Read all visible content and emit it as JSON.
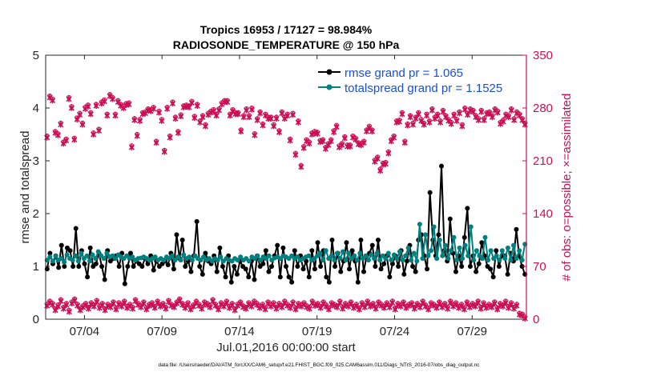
{
  "chart_data": {
    "type": "line",
    "title_line1": "Tropics 16953 / 17127 = 98.984%",
    "title_line2": "RADIOSONDE_TEMPERATURE @ 150 hPa",
    "ylabel_left": "rmse and totalspread",
    "ylabel_right": "# of obs: o=possible; ×=assimilated",
    "xlabel": "Jul.01,2016 00:00:00 start",
    "footer": "data file: /Users/raeder/DAI/ATM_forcXX/CAM6_setup/f.e21.FHIST_BGC.f09_025.CAM6assim.011/Diags_NTrS_2016-07/obs_diag_output.nc",
    "x_range": [
      1,
      32
    ],
    "ylim_left": [
      0,
      5
    ],
    "ylim_right": [
      0,
      350
    ],
    "xticks": [
      {
        "v": 3.5,
        "label": "07/04"
      },
      {
        "v": 8.5,
        "label": "07/09"
      },
      {
        "v": 13.5,
        "label": "07/14"
      },
      {
        "v": 18.5,
        "label": "07/19"
      },
      {
        "v": 23.5,
        "label": "07/24"
      },
      {
        "v": 28.5,
        "label": "07/29"
      }
    ],
    "yticks_left": [
      {
        "v": 0,
        "label": "0"
      },
      {
        "v": 1,
        "label": "1"
      },
      {
        "v": 2,
        "label": "2"
      },
      {
        "v": 3,
        "label": "3"
      },
      {
        "v": 4,
        "label": "4"
      },
      {
        "v": 5,
        "label": "5"
      }
    ],
    "yticks_right": [
      {
        "v": 0,
        "label": "0"
      },
      {
        "v": 70,
        "label": "70"
      },
      {
        "v": 140,
        "label": "140"
      },
      {
        "v": 210,
        "label": "210"
      },
      {
        "v": 280,
        "label": "280"
      },
      {
        "v": 350,
        "label": "350"
      }
    ],
    "colors": {
      "rmse": "#000000",
      "spread": "#00807f",
      "obs": "#cc0e55",
      "legend_text": "#1a4fd6",
      "axis": "#262626"
    },
    "series": [
      {
        "name": "rmse grand pr = 1.065",
        "axis": "left",
        "values": [
          0.95,
          1.25,
          1.05,
          1.2,
          0.98,
          1.4,
          1.0,
          1.35,
          1.3,
          1.0,
          1.72,
          1.0,
          1.3,
          1.05,
          0.8,
          1.35,
          1.0,
          1.05,
          1.25,
          1.0,
          0.75,
          1.3,
          1.1,
          1.15,
          1.2,
          1.0,
          1.25,
          0.67,
          1.0,
          1.25,
          1.0,
          1.1,
          1.05,
          1.0,
          1.15,
          1.05,
          1.2,
          0.93,
          1.1,
          1.0,
          1.05,
          1.1,
          1.03,
          1.25,
          0.95,
          1.6,
          1.15,
          1.5,
          1.0,
          1.1,
          0.9,
          1.2,
          1.85,
          1.0,
          0.85,
          1.25,
          1.1,
          1.05,
          1.2,
          0.9,
          1.35,
          1.0,
          0.8,
          1.2,
          0.7,
          1.0,
          0.85,
          1.1,
          1.0,
          0.95,
          0.8,
          1.1,
          0.75,
          1.2,
          1.0,
          1.05,
          1.3,
          0.9,
          1.0,
          1.2,
          1.4,
          0.8,
          1.35,
          1.0,
          0.8,
          0.7,
          1.3,
          1.0,
          1.2,
          0.95,
          1.1,
          0.8,
          1.3,
          0.95,
          1.45,
          1.0,
          1.3,
          0.8,
          0.7,
          1.5,
          1.0,
          1.25,
          0.9,
          1.1,
          1.45,
          0.95,
          1.3,
          1.1,
          0.7,
          1.5,
          0.9,
          1.2,
          1.25,
          1.4,
          1.0,
          1.5,
          0.95,
          1.05,
          1.2,
          0.8,
          1.05,
          1.2,
          1.0,
          1.3,
          0.85,
          1.1,
          1.4,
          1.0,
          0.9,
          1.5,
          1.6,
          1.2,
          0.95,
          2.4,
          1.5,
          1.2,
          1.6,
          2.9,
          1.3,
          1.1,
          1.9,
          1.25,
          0.9,
          1.2,
          1.0,
          1.55,
          2.1,
          1.0,
          1.2,
          0.9,
          1.05,
          1.45,
          1.2,
          1.0,
          0.95,
          0.8,
          1.3,
          1.0,
          1.2,
          1.2,
          0.85,
          1.25,
          1.1,
          1.7,
          1.2,
          1.0,
          0.85
        ]
      },
      {
        "name": "totalspread grand pr = 1.1525",
        "axis": "left",
        "values": [
          1.12,
          1.18,
          1.1,
          1.2,
          1.12,
          1.15,
          1.08,
          1.22,
          1.15,
          1.12,
          1.2,
          1.1,
          1.25,
          1.15,
          1.2,
          1.1,
          1.22,
          1.15,
          1.28,
          1.2,
          1.15,
          1.25,
          1.18,
          1.2,
          1.15,
          1.22,
          1.18,
          1.15,
          1.2,
          1.15,
          1.18,
          1.12,
          1.15,
          1.16,
          1.18,
          1.15,
          1.12,
          1.15,
          1.18,
          1.12,
          1.15,
          1.12,
          1.18,
          1.15,
          1.2,
          1.12,
          1.18,
          1.12,
          1.22,
          1.15,
          1.18,
          1.12,
          1.2,
          1.15,
          1.12,
          1.18,
          1.12,
          1.15,
          1.1,
          1.15,
          1.12,
          1.18,
          1.1,
          1.15,
          1.12,
          1.1,
          1.15,
          1.12,
          1.18,
          1.12,
          1.15,
          1.1,
          1.18,
          1.15,
          1.2,
          1.12,
          1.18,
          1.15,
          1.2,
          1.12,
          1.16,
          1.18,
          1.15,
          1.2,
          1.18,
          1.15,
          1.2,
          1.15,
          1.18,
          1.12,
          1.15,
          1.18,
          1.2,
          1.12,
          1.15,
          1.2,
          1.25,
          1.12,
          1.3,
          1.15,
          1.2,
          1.12,
          1.25,
          1.15,
          1.28,
          1.12,
          1.25,
          1.15,
          1.2,
          1.12,
          1.25,
          1.15,
          1.2,
          1.12,
          1.22,
          1.15,
          1.25,
          1.12,
          1.2,
          1.15,
          1.25,
          1.12,
          1.22,
          1.15,
          1.28,
          1.12,
          1.2,
          1.35,
          1.12,
          1.25,
          1.1,
          1.8,
          1.15,
          1.6,
          1.2,
          1.3,
          1.75,
          1.15,
          1.5,
          1.2,
          1.4,
          1.15,
          1.3,
          1.55,
          1.12,
          1.35,
          1.15,
          1.4,
          1.2,
          1.75,
          1.12,
          1.3,
          1.2,
          1.15,
          1.55,
          1.12,
          1.3,
          1.15,
          1.2,
          1.12,
          1.3,
          1.15,
          1.35,
          1.12,
          1.4,
          1.15,
          1.3,
          1.12,
          1.42
        ]
      },
      {
        "name": "obs possible",
        "axis": "right",
        "values": [
          241,
          294,
          290,
          247,
          244,
          258,
          233,
          237,
          292,
          280,
          238,
          265,
          271,
          258,
          279,
          282,
          272,
          245,
          283,
          250,
          286,
          289,
          270,
          296,
          292,
          270,
          288,
          283,
          280,
          284,
          285,
          228,
          264,
          243,
          263,
          272,
          273,
          277,
          276,
          279,
          234,
          274,
          263,
          222,
          279,
          241,
          286,
          266,
          247,
          269,
          281,
          282,
          281,
          287,
          267,
          283,
          261,
          268,
          256,
          271,
          274,
          276,
          270,
          277,
          285,
          288,
          288,
          270,
          276,
          272,
          272,
          249,
          268,
          277,
          268,
          278,
          244,
          264,
          273,
          257,
          270,
          266,
          266,
          256,
          266,
          248,
          273,
          266,
          270,
          237,
          271,
          218,
          261,
          202,
          227,
          236,
          233,
          245,
          247,
          246,
          235,
          236,
          226,
          231,
          236,
          248,
          255,
          228,
          231,
          240,
          229,
          229,
          241,
          238,
          232,
          231,
          234,
          249,
          254,
          249,
          209,
          213,
          197,
          205,
          206,
          220,
          236,
          241,
          261,
          262,
          272,
          234,
          257,
          268,
          258,
          266,
          272,
          263,
          258,
          270,
          261,
          277,
          266,
          270,
          261,
          275,
          268,
          263,
          259,
          270,
          263,
          273,
          256,
          278,
          271,
          277,
          275,
          268,
          264,
          275,
          264,
          272,
          273,
          268,
          277,
          274,
          259,
          262,
          270,
          268,
          277,
          264,
          273,
          270,
          264,
          258
        ]
      },
      {
        "name": "obs assimilated",
        "axis": "right",
        "values": [
          241,
          294,
          290,
          247,
          244,
          258,
          233,
          237,
          292,
          280,
          238,
          265,
          271,
          258,
          279,
          282,
          272,
          245,
          283,
          250,
          286,
          289,
          270,
          296,
          292,
          270,
          288,
          283,
          280,
          284,
          285,
          228,
          264,
          243,
          263,
          272,
          273,
          277,
          276,
          279,
          234,
          274,
          263,
          222,
          279,
          241,
          286,
          266,
          247,
          269,
          281,
          282,
          281,
          287,
          267,
          283,
          261,
          268,
          256,
          271,
          274,
          276,
          270,
          277,
          285,
          288,
          288,
          270,
          276,
          272,
          272,
          249,
          268,
          277,
          268,
          278,
          244,
          264,
          273,
          257,
          270,
          266,
          266,
          256,
          266,
          248,
          273,
          266,
          270,
          237,
          271,
          218,
          261,
          202,
          227,
          236,
          233,
          245,
          247,
          246,
          235,
          236,
          226,
          231,
          236,
          248,
          255,
          228,
          231,
          240,
          229,
          229,
          241,
          238,
          232,
          231,
          234,
          249,
          254,
          249,
          209,
          213,
          197,
          205,
          206,
          220,
          236,
          241,
          261,
          262,
          272,
          234,
          257,
          268,
          258,
          266,
          272,
          263,
          258,
          270,
          261,
          277,
          266,
          270,
          261,
          275,
          268,
          263,
          259,
          270,
          263,
          273,
          256,
          278,
          271,
          277,
          275,
          268,
          264,
          275,
          264,
          272,
          273,
          268,
          277,
          274,
          259,
          262,
          270,
          268,
          277,
          264,
          273,
          270,
          264,
          258
        ]
      },
      {
        "name": "obs secondary possible",
        "axis": "right",
        "values": [
          18,
          22,
          19,
          12,
          17,
          24,
          14,
          19,
          10,
          21,
          25,
          18,
          12,
          16,
          19,
          14,
          20,
          17,
          23,
          15,
          19,
          12,
          18,
          16,
          21,
          13,
          20,
          17,
          22,
          15,
          18,
          14,
          24,
          19,
          16,
          21,
          13,
          18,
          20,
          15,
          22,
          17,
          19,
          14,
          23,
          18,
          16,
          21,
          25,
          19,
          15,
          20,
          13,
          17,
          22,
          18,
          14,
          21,
          19,
          16,
          24,
          18,
          13,
          20,
          17,
          22,
          15,
          19,
          12,
          18,
          21,
          16,
          14,
          20,
          17,
          22,
          19,
          15,
          18,
          13,
          21,
          17,
          20,
          14,
          19,
          16,
          22,
          18,
          15,
          21,
          13,
          19,
          17,
          20,
          16,
          14,
          22,
          18,
          19,
          15,
          21,
          17,
          13,
          20,
          18,
          16,
          22,
          14,
          19,
          17,
          21,
          15,
          18,
          13,
          20,
          16,
          22,
          17,
          19,
          14,
          21,
          18,
          15,
          20,
          16,
          22,
          13,
          19,
          17,
          21,
          15,
          18,
          20,
          14,
          19,
          16,
          22,
          17,
          13,
          20,
          18,
          15,
          21,
          16,
          19,
          14,
          22,
          17,
          20,
          15,
          18,
          13,
          21,
          16,
          19,
          17,
          22,
          14,
          20,
          15,
          18,
          16,
          21,
          13,
          19,
          17,
          22,
          15,
          20,
          14,
          18,
          6,
          5,
          1
        ]
      },
      {
        "name": "obs secondary assimilated",
        "axis": "right",
        "values": [
          18,
          22,
          19,
          12,
          17,
          24,
          14,
          19,
          10,
          21,
          25,
          18,
          12,
          16,
          19,
          14,
          20,
          17,
          23,
          15,
          19,
          12,
          18,
          16,
          21,
          13,
          20,
          17,
          22,
          15,
          18,
          14,
          24,
          19,
          16,
          21,
          13,
          18,
          20,
          15,
          22,
          17,
          19,
          14,
          23,
          18,
          16,
          21,
          25,
          19,
          15,
          20,
          13,
          17,
          22,
          18,
          14,
          21,
          19,
          16,
          24,
          18,
          13,
          20,
          17,
          22,
          15,
          19,
          12,
          18,
          21,
          16,
          14,
          20,
          17,
          22,
          19,
          15,
          18,
          13,
          21,
          17,
          20,
          14,
          19,
          16,
          22,
          18,
          15,
          21,
          13,
          19,
          17,
          20,
          16,
          14,
          22,
          18,
          19,
          15,
          21,
          17,
          13,
          20,
          18,
          16,
          22,
          14,
          19,
          17,
          21,
          15,
          18,
          13,
          20,
          16,
          22,
          17,
          19,
          14,
          21,
          18,
          15,
          20,
          16,
          22,
          13,
          19,
          17,
          21,
          15,
          18,
          20,
          14,
          19,
          16,
          22,
          17,
          13,
          20,
          18,
          15,
          21,
          16,
          19,
          14,
          22,
          17,
          20,
          15,
          18,
          13,
          21,
          16,
          19,
          17,
          22,
          14,
          20,
          15,
          18,
          16,
          21,
          13,
          19,
          17,
          22,
          15,
          20,
          14,
          18,
          6,
          5,
          1
        ]
      }
    ]
  }
}
